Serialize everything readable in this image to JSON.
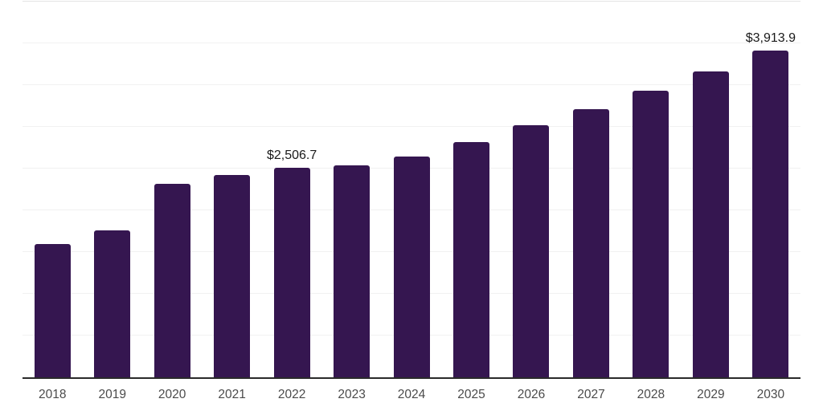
{
  "chart_data": {
    "type": "bar",
    "title": "",
    "categories": [
      "2018",
      "2019",
      "2020",
      "2021",
      "2022",
      "2023",
      "2024",
      "2025",
      "2026",
      "2027",
      "2028",
      "2029",
      "2030"
    ],
    "values": [
      1600,
      1755,
      2315,
      2425,
      2506.7,
      2535,
      2645,
      2820,
      3020,
      3210,
      3435,
      3665,
      3913.9
    ],
    "value_labels": [
      "",
      "",
      "",
      "",
      "$2,506.7",
      "",
      "",
      "",
      "",
      "",
      "",
      "",
      "$3,913.9"
    ],
    "xlabel": "",
    "ylabel": "",
    "ylim": [
      0,
      4500
    ],
    "gridline_step": 500,
    "grid": true,
    "legend": false,
    "colors": {
      "bar": "#351650",
      "axis_line": "#2a2a2a",
      "gridline": "#f1f1f1",
      "gridline_top": "#e4e4e4",
      "value_label": "#1a1a1a",
      "tick_label": "#4b4b4b",
      "background": "#ffffff"
    }
  }
}
